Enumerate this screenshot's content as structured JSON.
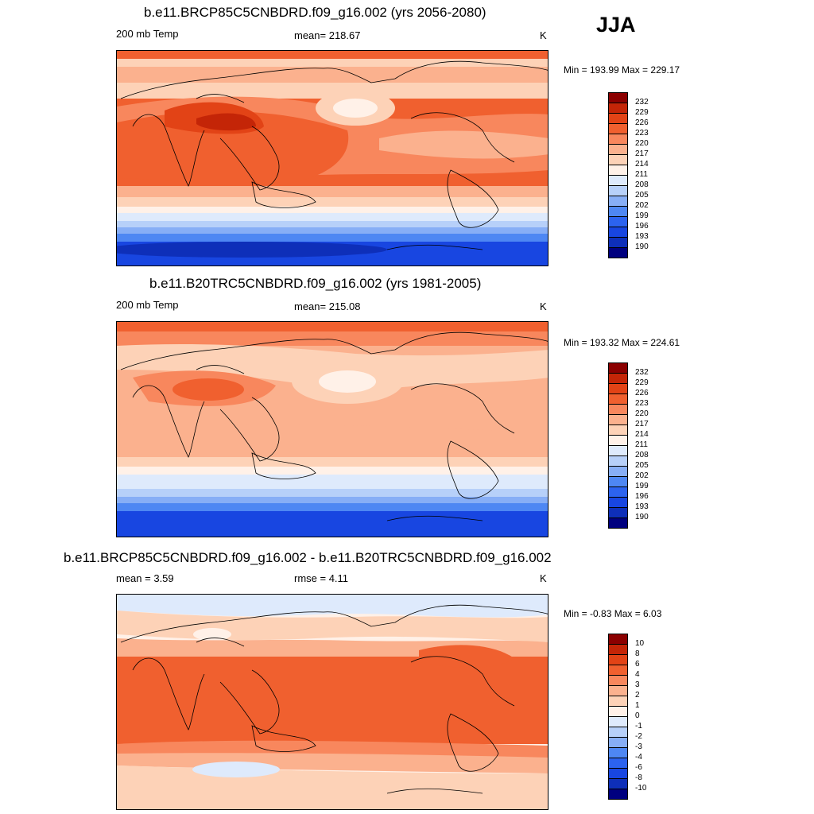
{
  "season": "JJA",
  "units": "K",
  "colors": {
    "abs_scale": [
      "#00007f",
      "#0e2fb9",
      "#1846e1",
      "#2c63ef",
      "#4e87f3",
      "#87aef6",
      "#b7d0f9",
      "#deeafc",
      "#fff1e8",
      "#fdd2b7",
      "#fbb18e",
      "#f8875d",
      "#f0602f",
      "#e24316",
      "#c42507",
      "#8b0000"
    ],
    "diff_scale": [
      "#00007f",
      "#0e2fb9",
      "#1846e1",
      "#2c63ef",
      "#4e87f3",
      "#87aef6",
      "#b7d0f9",
      "#deeafc",
      "#fff1e8",
      "#fdd2b7",
      "#fbb18e",
      "#f8875d",
      "#f0602f",
      "#e24316",
      "#c42507",
      "#8b0000"
    ],
    "land_outline": "#000000"
  },
  "panels": [
    {
      "id": "future",
      "title": "b.e11.BRCP85C5CNBDRD.f09_g16.002 (yrs 2056-2080)",
      "left_label": "200 mb Temp",
      "center_label": "mean= 218.67",
      "units": "K",
      "minmax": "Min = 193.99 Max = 229.17",
      "colorbar_ticks": [
        "232",
        "229",
        "226",
        "223",
        "220",
        "217",
        "214",
        "211",
        "208",
        "205",
        "202",
        "199",
        "196",
        "193",
        "190"
      ]
    },
    {
      "id": "historical",
      "title": "b.e11.B20TRC5CNBDRD.f09_g16.002 (yrs 1981-2005)",
      "left_label": "200 mb Temp",
      "center_label": "mean= 215.08",
      "units": "K",
      "minmax": "Min = 193.32 Max = 224.61",
      "colorbar_ticks": [
        "232",
        "229",
        "226",
        "223",
        "220",
        "217",
        "214",
        "211",
        "208",
        "205",
        "202",
        "199",
        "196",
        "193",
        "190"
      ]
    },
    {
      "id": "difference",
      "title": "b.e11.BRCP85C5CNBDRD.f09_g16.002 - b.e11.B20TRC5CNBDRD.f09_g16.002",
      "left_label": "mean =   3.59",
      "center_label": "rmse =   4.11",
      "units": "K",
      "minmax": "Min =  -0.83 Max =   6.03",
      "colorbar_ticks": [
        "10",
        "8",
        "6",
        "4",
        "3",
        "2",
        "1",
        "0",
        "-1",
        "-2",
        "-3",
        "-4",
        "-6",
        "-8",
        "-10"
      ]
    }
  ]
}
